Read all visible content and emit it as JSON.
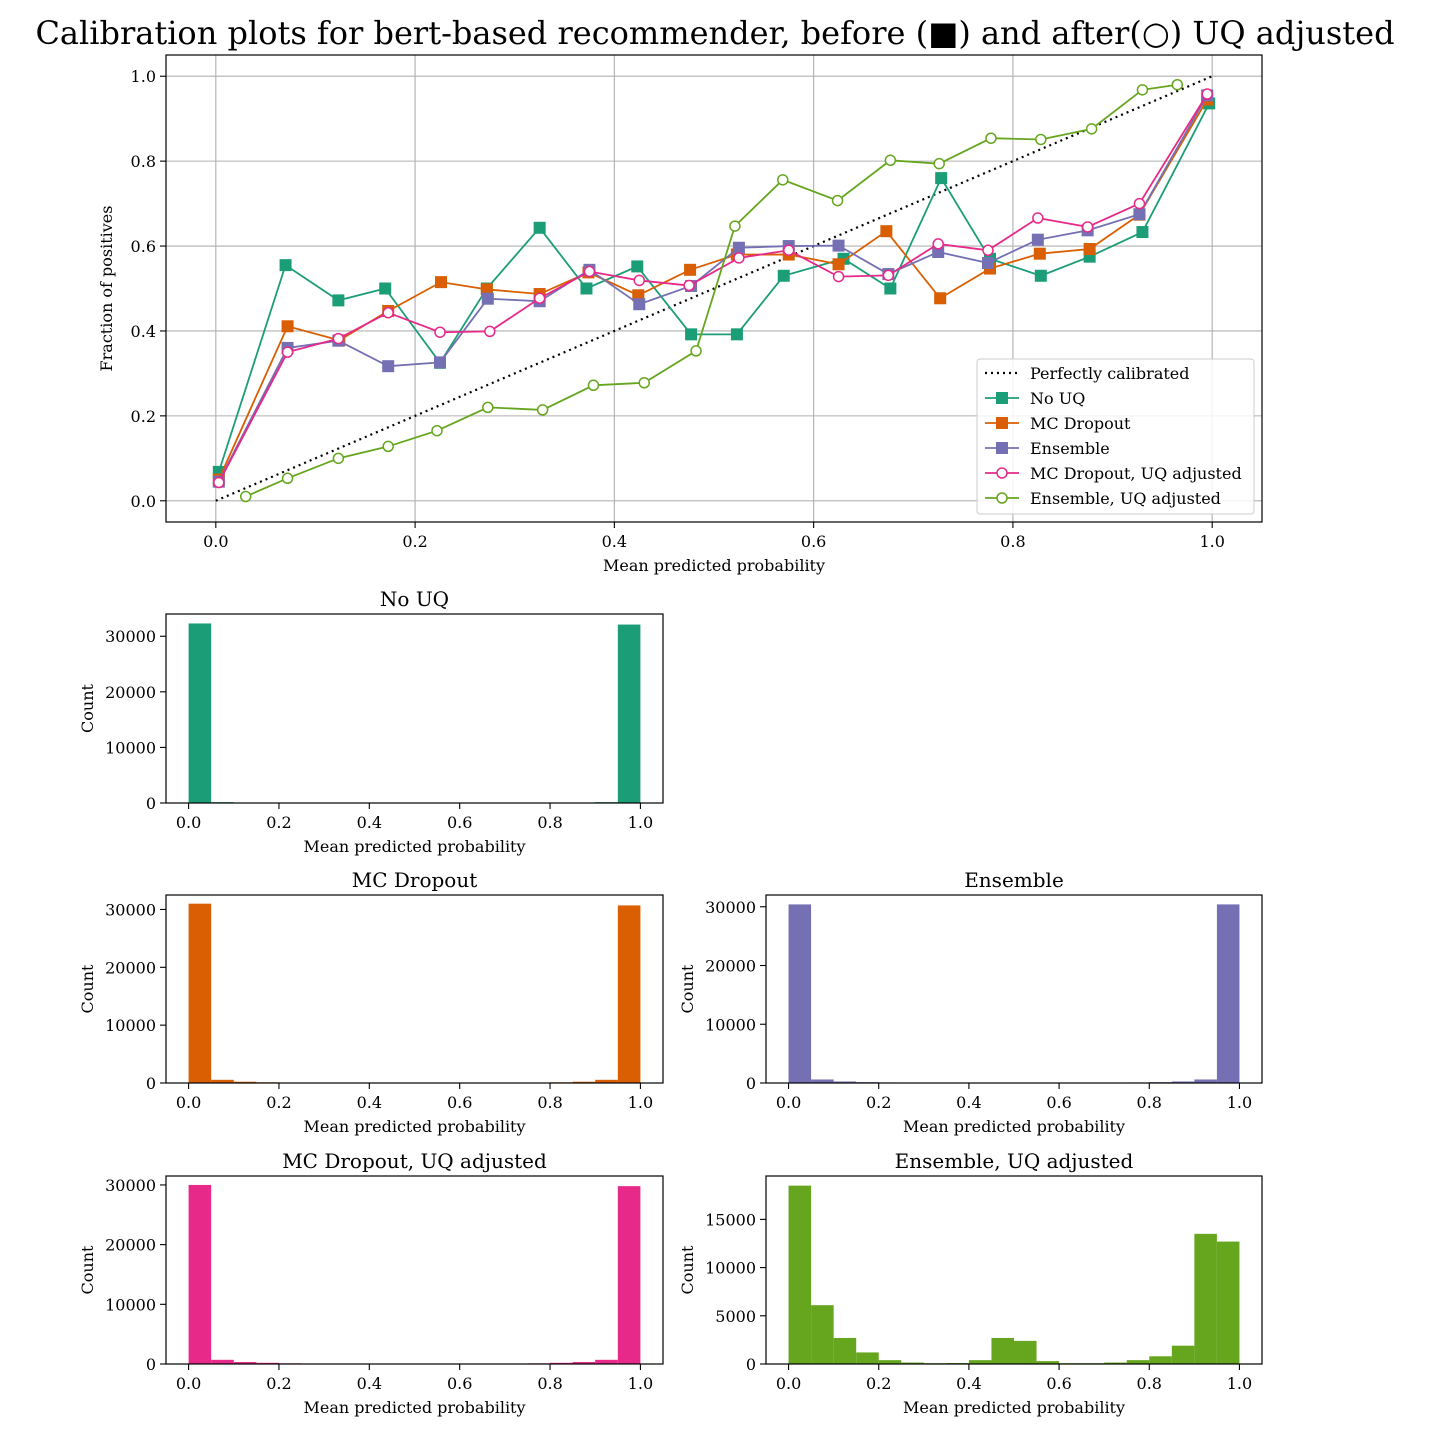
{
  "figure": {
    "suptitle": "Calibration plots for bert-based recommender, before (■) and after(○) UQ adjusted"
  },
  "chart_data": [
    {
      "type": "line",
      "id": "calibration",
      "title": "",
      "xlabel": "Mean predicted probability",
      "ylabel": "Fraction of positives",
      "xlim": [
        -0.05,
        1.05
      ],
      "ylim": [
        -0.05,
        1.05
      ],
      "xticks": [
        "0.0",
        "0.2",
        "0.4",
        "0.6",
        "0.8",
        "1.0"
      ],
      "yticks": [
        "0.0",
        "0.2",
        "0.4",
        "0.6",
        "0.8",
        "1.0"
      ],
      "grid": true,
      "legend_position": "lower-right",
      "series": [
        {
          "name": "Perfectly calibrated",
          "color": "#000000",
          "style": "dotted",
          "marker": "none",
          "x": [
            0,
            1
          ],
          "y": [
            0,
            1
          ]
        },
        {
          "name": "No UQ",
          "color": "#1b9e77",
          "style": "solid",
          "marker": "square",
          "x": [
            0.003,
            0.07,
            0.123,
            0.17,
            0.225,
            0.272,
            0.325,
            0.372,
            0.423,
            0.477,
            0.523,
            0.57,
            0.63,
            0.677,
            0.728,
            0.777,
            0.828,
            0.877,
            0.93,
            0.997
          ],
          "y": [
            0.068,
            0.555,
            0.472,
            0.5,
            0.325,
            0.5,
            0.643,
            0.5,
            0.552,
            0.392,
            0.392,
            0.53,
            0.57,
            0.5,
            0.76,
            0.57,
            0.53,
            0.575,
            0.633,
            0.936
          ]
        },
        {
          "name": "MC Dropout",
          "color": "#d95f02",
          "style": "solid",
          "marker": "square",
          "x": [
            0.003,
            0.072,
            0.124,
            0.173,
            0.226,
            0.272,
            0.325,
            0.374,
            0.424,
            0.476,
            0.523,
            0.575,
            0.625,
            0.673,
            0.727,
            0.777,
            0.827,
            0.877,
            0.927,
            0.995
          ],
          "y": [
            0.05,
            0.411,
            0.378,
            0.447,
            0.515,
            0.498,
            0.487,
            0.538,
            0.484,
            0.544,
            0.58,
            0.58,
            0.557,
            0.635,
            0.477,
            0.547,
            0.582,
            0.593,
            0.674,
            0.945
          ]
        },
        {
          "name": "Ensemble",
          "color": "#7570b3",
          "style": "solid",
          "marker": "square",
          "x": [
            0.003,
            0.072,
            0.123,
            0.173,
            0.225,
            0.273,
            0.325,
            0.375,
            0.425,
            0.477,
            0.525,
            0.575,
            0.625,
            0.675,
            0.725,
            0.775,
            0.825,
            0.875,
            0.927,
            0.995
          ],
          "y": [
            0.045,
            0.36,
            0.377,
            0.317,
            0.326,
            0.476,
            0.47,
            0.544,
            0.463,
            0.506,
            0.596,
            0.6,
            0.601,
            0.534,
            0.586,
            0.56,
            0.615,
            0.637,
            0.675,
            0.955
          ]
        },
        {
          "name": "MC Dropout, UQ adjusted",
          "color": "#e7298a",
          "style": "solid",
          "marker": "circle",
          "x": [
            0.003,
            0.072,
            0.123,
            0.173,
            0.225,
            0.275,
            0.325,
            0.375,
            0.425,
            0.475,
            0.525,
            0.575,
            0.625,
            0.675,
            0.725,
            0.775,
            0.825,
            0.875,
            0.927,
            0.995
          ],
          "y": [
            0.043,
            0.35,
            0.382,
            0.443,
            0.397,
            0.399,
            0.477,
            0.54,
            0.519,
            0.507,
            0.572,
            0.59,
            0.528,
            0.531,
            0.605,
            0.59,
            0.666,
            0.645,
            0.7,
            0.958
          ]
        },
        {
          "name": "Ensemble, UQ adjusted",
          "color": "#66a61e",
          "style": "solid",
          "marker": "circle",
          "x": [
            0.03,
            0.072,
            0.123,
            0.173,
            0.222,
            0.273,
            0.328,
            0.379,
            0.43,
            0.482,
            0.521,
            0.569,
            0.624,
            0.677,
            0.726,
            0.778,
            0.828,
            0.879,
            0.93,
            0.965
          ],
          "y": [
            0.01,
            0.053,
            0.1,
            0.128,
            0.165,
            0.22,
            0.214,
            0.272,
            0.278,
            0.353,
            0.647,
            0.756,
            0.707,
            0.802,
            0.794,
            0.854,
            0.851,
            0.876,
            0.968,
            0.98
          ]
        }
      ]
    },
    {
      "type": "bar",
      "id": "hist-no-uq",
      "title": "No UQ",
      "color": "#1b9e77",
      "xlabel": "Mean predicted probability",
      "ylabel": "Count",
      "xlim": [
        -0.05,
        1.05
      ],
      "ylim": [
        0,
        34000
      ],
      "xticks": [
        "0.0",
        "0.2",
        "0.4",
        "0.6",
        "0.8",
        "1.0"
      ],
      "yticks": [
        "0",
        "10000",
        "20000",
        "30000"
      ],
      "bin_edges": [
        0,
        0.05,
        0.1,
        0.15,
        0.2,
        0.25,
        0.3,
        0.35,
        0.4,
        0.45,
        0.5,
        0.55,
        0.6,
        0.65,
        0.7,
        0.75,
        0.8,
        0.85,
        0.9,
        0.95,
        1.0
      ],
      "values": [
        32300,
        150,
        40,
        20,
        15,
        10,
        8,
        6,
        5,
        5,
        5,
        5,
        6,
        8,
        10,
        15,
        20,
        40,
        150,
        32100
      ]
    },
    {
      "type": "bar",
      "id": "hist-mc-dropout",
      "title": "MC Dropout",
      "color": "#d95f02",
      "xlabel": "Mean predicted probability",
      "ylabel": "Count",
      "xlim": [
        -0.05,
        1.05
      ],
      "ylim": [
        0,
        32500
      ],
      "xticks": [
        "0.0",
        "0.2",
        "0.4",
        "0.6",
        "0.8",
        "1.0"
      ],
      "yticks": [
        "0",
        "10000",
        "20000",
        "30000"
      ],
      "bin_edges": [
        0,
        0.05,
        0.1,
        0.15,
        0.2,
        0.25,
        0.3,
        0.35,
        0.4,
        0.45,
        0.5,
        0.55,
        0.6,
        0.65,
        0.7,
        0.75,
        0.8,
        0.85,
        0.9,
        0.95,
        1.0
      ],
      "values": [
        31000,
        550,
        220,
        120,
        60,
        40,
        30,
        25,
        20,
        20,
        20,
        20,
        25,
        30,
        40,
        60,
        120,
        220,
        550,
        30700
      ]
    },
    {
      "type": "bar",
      "id": "hist-ensemble",
      "title": "Ensemble",
      "color": "#7570b3",
      "xlabel": "Mean predicted probability",
      "ylabel": "Count",
      "xlim": [
        -0.05,
        1.05
      ],
      "ylim": [
        0,
        32000
      ],
      "xticks": [
        "0.0",
        "0.2",
        "0.4",
        "0.6",
        "0.8",
        "1.0"
      ],
      "yticks": [
        "0",
        "10000",
        "20000",
        "30000"
      ],
      "bin_edges": [
        0,
        0.05,
        0.1,
        0.15,
        0.2,
        0.25,
        0.3,
        0.35,
        0.4,
        0.45,
        0.5,
        0.55,
        0.6,
        0.65,
        0.7,
        0.75,
        0.8,
        0.85,
        0.9,
        0.95,
        1.0
      ],
      "values": [
        30400,
        600,
        260,
        150,
        90,
        60,
        40,
        30,
        25,
        25,
        25,
        25,
        30,
        40,
        60,
        90,
        150,
        260,
        600,
        30400
      ]
    },
    {
      "type": "bar",
      "id": "hist-mc-dropout-uq",
      "title": "MC Dropout, UQ adjusted",
      "color": "#e7298a",
      "xlabel": "Mean predicted probability",
      "ylabel": "Count",
      "xlim": [
        -0.05,
        1.05
      ],
      "ylim": [
        0,
        31500
      ],
      "xticks": [
        "0.0",
        "0.2",
        "0.4",
        "0.6",
        "0.8",
        "1.0"
      ],
      "yticks": [
        "0",
        "10000",
        "20000",
        "30000"
      ],
      "bin_edges": [
        0,
        0.05,
        0.1,
        0.15,
        0.2,
        0.25,
        0.3,
        0.35,
        0.4,
        0.45,
        0.5,
        0.55,
        0.6,
        0.65,
        0.7,
        0.75,
        0.8,
        0.85,
        0.9,
        0.95,
        1.0
      ],
      "values": [
        30000,
        700,
        330,
        200,
        110,
        80,
        60,
        50,
        40,
        40,
        40,
        40,
        50,
        60,
        80,
        110,
        200,
        330,
        700,
        29800
      ]
    },
    {
      "type": "bar",
      "id": "hist-ensemble-uq",
      "title": "Ensemble, UQ adjusted",
      "color": "#66a61e",
      "xlabel": "Mean predicted probability",
      "ylabel": "Count",
      "xlim": [
        -0.05,
        1.05
      ],
      "ylim": [
        0,
        19500
      ],
      "xticks": [
        "0.0",
        "0.2",
        "0.4",
        "0.6",
        "0.8",
        "1.0"
      ],
      "yticks": [
        "0",
        "5000",
        "10000",
        "15000"
      ],
      "bin_edges": [
        0,
        0.05,
        0.1,
        0.15,
        0.2,
        0.25,
        0.3,
        0.35,
        0.4,
        0.45,
        0.5,
        0.55,
        0.6,
        0.65,
        0.7,
        0.75,
        0.8,
        0.85,
        0.9,
        0.95,
        1.0
      ],
      "values": [
        18500,
        6100,
        2700,
        1200,
        400,
        150,
        80,
        100,
        400,
        2700,
        2400,
        300,
        80,
        80,
        150,
        400,
        800,
        1900,
        13500,
        12700
      ]
    }
  ]
}
